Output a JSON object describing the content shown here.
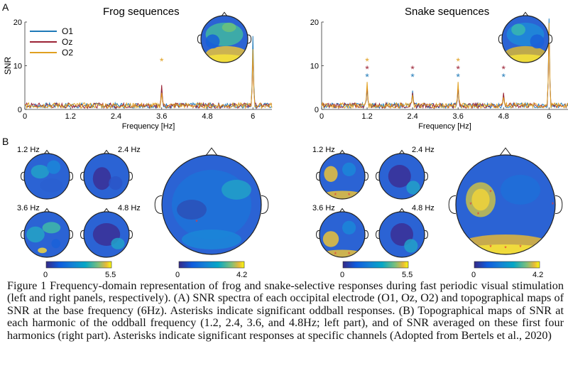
{
  "panel_a": {
    "letter": "A",
    "left_title": "Frog sequences",
    "right_title": "Snake sequences",
    "ylabel": "SNR",
    "xlabel": "Frequency [Hz]",
    "legend": [
      "O1",
      "Oz",
      "O2"
    ],
    "colors": {
      "O1": "#1f7ab8",
      "Oz": "#9b2335",
      "O2": "#e0a020"
    },
    "asterisk": "*"
  },
  "panel_b": {
    "letter": "B",
    "harmonic_labels": [
      "1.2 Hz",
      "2.4 Hz",
      "3.6 Hz",
      "4.8 Hz"
    ],
    "small_colorbar_ticks": [
      "0",
      "5.5"
    ],
    "large_colorbar_ticks": [
      "0",
      "4.2"
    ]
  },
  "chart_data": [
    {
      "type": "line",
      "title": "Frog sequences",
      "xlabel": "Frequency [Hz]",
      "ylabel": "SNR",
      "xlim": [
        0,
        6.5
      ],
      "ylim": [
        0,
        20
      ],
      "xticks": [
        "0",
        "1.2",
        "2.4",
        "3.6",
        "4.8",
        "6"
      ],
      "yticks": [
        "0",
        "10",
        "20"
      ],
      "series": [
        {
          "name": "O1",
          "peaks": [
            [
              3.6,
              4.0
            ],
            [
              6.0,
              16.0
            ]
          ]
        },
        {
          "name": "Oz",
          "peaks": [
            [
              3.6,
              4.8
            ],
            [
              6.0,
              12.0
            ]
          ]
        },
        {
          "name": "O2",
          "peaks": [
            [
              3.6,
              3.0
            ],
            [
              6.0,
              13.0
            ]
          ]
        }
      ],
      "significant_harmonics": {
        "O2": [
          3.6
        ]
      }
    },
    {
      "type": "line",
      "title": "Snake sequences",
      "xlabel": "Frequency [Hz]",
      "ylabel": "",
      "xlim": [
        0,
        6.5
      ],
      "ylim": [
        0,
        20
      ],
      "xticks": [
        "0",
        "1.2",
        "2.4",
        "3.6",
        "4.8",
        "6"
      ],
      "yticks": [
        "0",
        "10",
        "20"
      ],
      "series": [
        {
          "name": "O1",
          "peaks": [
            [
              1.2,
              4.0
            ],
            [
              2.4,
              3.5
            ],
            [
              3.6,
              4.0
            ],
            [
              4.8,
              2.5
            ],
            [
              6.0,
              20.0
            ]
          ]
        },
        {
          "name": "Oz",
          "peaks": [
            [
              1.2,
              4.5
            ],
            [
              2.4,
              3.0
            ],
            [
              3.6,
              4.5
            ],
            [
              4.8,
              3.0
            ],
            [
              6.0,
              18.0
            ]
          ]
        },
        {
          "name": "O2",
          "peaks": [
            [
              1.2,
              5.5
            ],
            [
              2.4,
              2.5
            ],
            [
              3.6,
              5.5
            ],
            [
              4.8,
              2.0
            ],
            [
              6.0,
              19.0
            ]
          ]
        }
      ],
      "significant_harmonics": {
        "O2": [
          1.2,
          3.6
        ],
        "Oz": [
          1.2,
          2.4,
          3.6,
          4.8
        ],
        "O1": [
          1.2,
          2.4,
          3.6,
          4.8
        ]
      }
    }
  ],
  "caption": "Figure 1 Frequency-domain representation of frog and snake-selective responses during fast periodic visual stimulation (left and right panels, respectively). (A) SNR spectra of each occipital electrode (O1, Oz, O2) and topographical maps of SNR at the base frequency (6Hz). Asterisks indicate significant oddball responses. (B) Topographical maps of SNR at each harmonic of the oddball frequency (1.2, 2.4, 3.6, and 4.8Hz; left part), and of SNR averaged on these first four harmonics (right part). Asterisks indicate significant responses at specific channels (Adopted from Bertels et al., 2020)"
}
